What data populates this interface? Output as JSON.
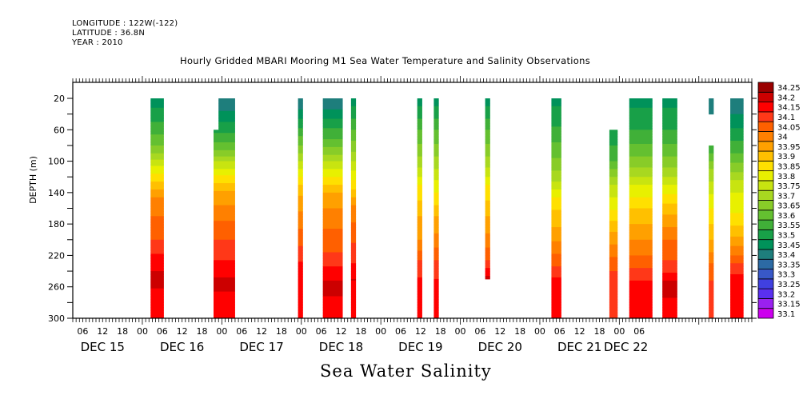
{
  "header": {
    "longitude": "LONGITUDE : 122W(-122)",
    "latitude": "LATITUDE : 36.8N",
    "year": "YEAR : 2010"
  },
  "chart_data": {
    "type": "heatmap",
    "title": "Hourly Gridded MBARI Mooring M1 Sea Water Temperature and Salinity Observations",
    "subtitle": "Sea Water Salinity",
    "xlabel": "",
    "ylabel": "DEPTH (m)",
    "y_ticks": [
      20,
      60,
      100,
      140,
      180,
      220,
      260,
      300
    ],
    "ylim": [
      300,
      0
    ],
    "x_range_hours": [
      "DEC 15 03:00",
      "DEC 22 08:00"
    ],
    "x_hour_tick_labels": [
      "06",
      "12",
      "18",
      "00",
      "06",
      "12",
      "18",
      "00",
      "06",
      "12",
      "18",
      "00",
      "06",
      "12",
      "18",
      "00",
      "06",
      "12",
      "18",
      "00",
      "06",
      "12",
      "18",
      "00",
      "06",
      "12",
      "18",
      "00",
      "06"
    ],
    "x_hour_ticks_hours_from_dec15_00": [
      6,
      12,
      18,
      24,
      30,
      36,
      42,
      48,
      54,
      60,
      66,
      72,
      78,
      84,
      90,
      96,
      102,
      108,
      114,
      120,
      126,
      132,
      138,
      144,
      150,
      156,
      162,
      168,
      174
    ],
    "x_day_labels": [
      {
        "label": "DEC 15",
        "hour": 12
      },
      {
        "label": "DEC 16",
        "hour": 36
      },
      {
        "label": "DEC 17",
        "hour": 60
      },
      {
        "label": "DEC 18",
        "hour": 84
      },
      {
        "label": "DEC 19",
        "hour": 108
      },
      {
        "label": "DEC 20",
        "hour": 132
      },
      {
        "label": "DEC 21",
        "hour": 156
      },
      {
        "label": "DEC 22",
        "hour": 170
      }
    ],
    "colorbar": {
      "levels": [
        33.1,
        33.15,
        33.2,
        33.25,
        33.3,
        33.35,
        33.4,
        33.45,
        33.5,
        33.55,
        33.6,
        33.65,
        33.7,
        33.75,
        33.8,
        33.85,
        33.9,
        33.95,
        34,
        34.05,
        34.1,
        34.15,
        34.2,
        34.25
      ],
      "labels": [
        "33.1",
        "33.15",
        "33.2",
        "33.25",
        "33.3",
        "33.35",
        "33.4",
        "33.45",
        "33.5",
        "33.55",
        "33.6",
        "33.65",
        "33.7",
        "33.75",
        "33.8",
        "33.85",
        "33.9",
        "33.95",
        "34",
        "34.05",
        "34.1",
        "34.15",
        "34.2",
        "34.25"
      ],
      "colors": [
        "#cc00ee",
        "#9a20f0",
        "#5a30f0",
        "#4040e0",
        "#3858c8",
        "#2c6aa4",
        "#1e7e7c",
        "#00925a",
        "#18a048",
        "#40b038",
        "#64c030",
        "#88cc28",
        "#a8d820",
        "#c8e410",
        "#e8f000",
        "#ffe000",
        "#ffc000",
        "#ffa000",
        "#ff8000",
        "#ff6000",
        "#ff3818",
        "#ff0000",
        "#cc0000",
        "#9a0000"
      ]
    },
    "segments": [
      {
        "start_hour": 26.5,
        "end_hour": 30.5,
        "top_depth": 20,
        "profile": [
          [
            20,
            33.47
          ],
          [
            50,
            33.55
          ],
          [
            80,
            33.65
          ],
          [
            100,
            33.77
          ],
          [
            115,
            33.85
          ],
          [
            130,
            33.93
          ],
          [
            150,
            34.02
          ],
          [
            200,
            34.1
          ],
          [
            225,
            34.17
          ],
          [
            250,
            34.22
          ],
          [
            270,
            34.18
          ],
          [
            300,
            34.2
          ]
        ]
      },
      {
        "start_hour": 45.5,
        "end_hour": 52,
        "top_depth": 60,
        "top_extra": {
          "start_hour": 47,
          "top_depth": 20
        },
        "profile": [
          [
            20,
            33.4
          ],
          [
            50,
            33.5
          ],
          [
            80,
            33.62
          ],
          [
            100,
            33.75
          ],
          [
            118,
            33.86
          ],
          [
            140,
            33.96
          ],
          [
            175,
            34.05
          ],
          [
            215,
            34.13
          ],
          [
            240,
            34.18
          ],
          [
            255,
            34.22
          ],
          [
            275,
            34.18
          ],
          [
            300,
            34.19
          ]
        ]
      },
      {
        "start_hour": 71,
        "end_hour": 72.5,
        "top_depth": 20,
        "profile": [
          [
            20,
            33.4
          ],
          [
            45,
            33.5
          ],
          [
            90,
            33.7
          ],
          [
            115,
            33.83
          ],
          [
            135,
            33.93
          ],
          [
            180,
            34.04
          ],
          [
            215,
            34.12
          ],
          [
            245,
            34.2
          ],
          [
            265,
            34.17
          ],
          [
            300,
            34.16
          ]
        ]
      },
      {
        "start_hour": 78.5,
        "end_hour": 84.5,
        "top_depth": 20,
        "profile": [
          [
            20,
            33.4
          ],
          [
            45,
            33.5
          ],
          [
            75,
            33.62
          ],
          [
            100,
            33.75
          ],
          [
            120,
            33.85
          ],
          [
            140,
            33.96
          ],
          [
            180,
            34.04
          ],
          [
            215,
            34.1
          ],
          [
            240,
            34.17
          ],
          [
            258,
            34.22
          ],
          [
            285,
            34.18
          ],
          [
            300,
            34.15
          ]
        ]
      },
      {
        "start_hour": 87,
        "end_hour": 88.5,
        "top_depth": 20,
        "profile": [
          [
            20,
            33.47
          ],
          [
            60,
            33.6
          ],
          [
            100,
            33.75
          ],
          [
            130,
            33.88
          ],
          [
            160,
            34.02
          ],
          [
            220,
            34.13
          ],
          [
            250,
            34.2
          ],
          [
            275,
            34.17
          ],
          [
            300,
            34.15
          ]
        ]
      },
      {
        "start_hour": 107,
        "end_hour": 108.5,
        "top_depth": 20,
        "profile": [
          [
            20,
            33.47
          ],
          [
            60,
            33.6
          ],
          [
            100,
            33.72
          ],
          [
            130,
            33.85
          ],
          [
            170,
            33.95
          ],
          [
            200,
            34
          ],
          [
            225,
            34.1
          ],
          [
            260,
            34.18
          ],
          [
            300,
            34.15
          ]
        ]
      },
      {
        "start_hour": 112,
        "end_hour": 113.5,
        "top_depth": 20,
        "profile": [
          [
            20,
            33.47
          ],
          [
            60,
            33.6
          ],
          [
            100,
            33.72
          ],
          [
            130,
            33.82
          ],
          [
            170,
            33.95
          ],
          [
            200,
            34.02
          ],
          [
            225,
            34.1
          ],
          [
            260,
            34.17
          ],
          [
            300,
            34.15
          ]
        ]
      },
      {
        "start_hour": 127.5,
        "end_hour": 129,
        "top_depth": 20,
        "bottom_depth": 250,
        "profile": [
          [
            20,
            33.47
          ],
          [
            60,
            33.6
          ],
          [
            100,
            33.72
          ],
          [
            130,
            33.85
          ],
          [
            170,
            33.95
          ],
          [
            200,
            34.02
          ],
          [
            225,
            34.1
          ],
          [
            245,
            34.2
          ]
        ]
      },
      {
        "start_hour": 147.5,
        "end_hour": 150.5,
        "top_depth": 20,
        "profile": [
          [
            20,
            33.48
          ],
          [
            60,
            33.56
          ],
          [
            100,
            33.66
          ],
          [
            130,
            33.77
          ],
          [
            150,
            33.87
          ],
          [
            190,
            33.97
          ],
          [
            225,
            34.07
          ],
          [
            255,
            34.18
          ],
          [
            300,
            34.15
          ]
        ]
      },
      {
        "start_hour": 165,
        "end_hour": 167.5,
        "top_depth": 60,
        "profile": [
          [
            60,
            33.5
          ],
          [
            100,
            33.6
          ],
          [
            130,
            33.75
          ],
          [
            170,
            33.88
          ],
          [
            210,
            34.02
          ],
          [
            240,
            34.1
          ],
          [
            300,
            34.15
          ]
        ]
      },
      {
        "start_hour": 171,
        "end_hour": 178,
        "top_depth": 20,
        "profile": [
          [
            20,
            33.48
          ],
          [
            60,
            33.55
          ],
          [
            100,
            33.67
          ],
          [
            130,
            33.8
          ],
          [
            160,
            33.9
          ],
          [
            200,
            34.0
          ],
          [
            230,
            34.08
          ],
          [
            260,
            34.18
          ],
          [
            300,
            34.15
          ]
        ]
      },
      {
        "start_hour": 181,
        "end_hour": 185.5,
        "top_depth": 20,
        "profile": [
          [
            20,
            33.48
          ],
          [
            60,
            33.55
          ],
          [
            100,
            33.67
          ],
          [
            130,
            33.8
          ],
          [
            160,
            33.93
          ],
          [
            200,
            34.05
          ],
          [
            235,
            34.12
          ],
          [
            255,
            34.22
          ],
          [
            300,
            34.17
          ]
        ]
      },
      {
        "start_hour": 195,
        "end_hour": 196.5,
        "top_depth": 20,
        "gap": [
          40,
          80
        ],
        "profile": [
          [
            20,
            33.4
          ],
          [
            80,
            33.55
          ],
          [
            110,
            33.7
          ],
          [
            150,
            33.83
          ],
          [
            200,
            33.95
          ],
          [
            230,
            34.05
          ],
          [
            260,
            34.12
          ],
          [
            300,
            34.15
          ]
        ]
      },
      {
        "start_hour": 201.5,
        "end_hour": 205.5,
        "top_depth": 20,
        "profile": [
          [
            20,
            33.4
          ],
          [
            50,
            33.48
          ],
          [
            90,
            33.6
          ],
          [
            130,
            33.78
          ],
          [
            170,
            33.86
          ],
          [
            200,
            33.97
          ],
          [
            225,
            34.08
          ],
          [
            250,
            34.18
          ],
          [
            300,
            34.15
          ]
        ]
      }
    ]
  }
}
